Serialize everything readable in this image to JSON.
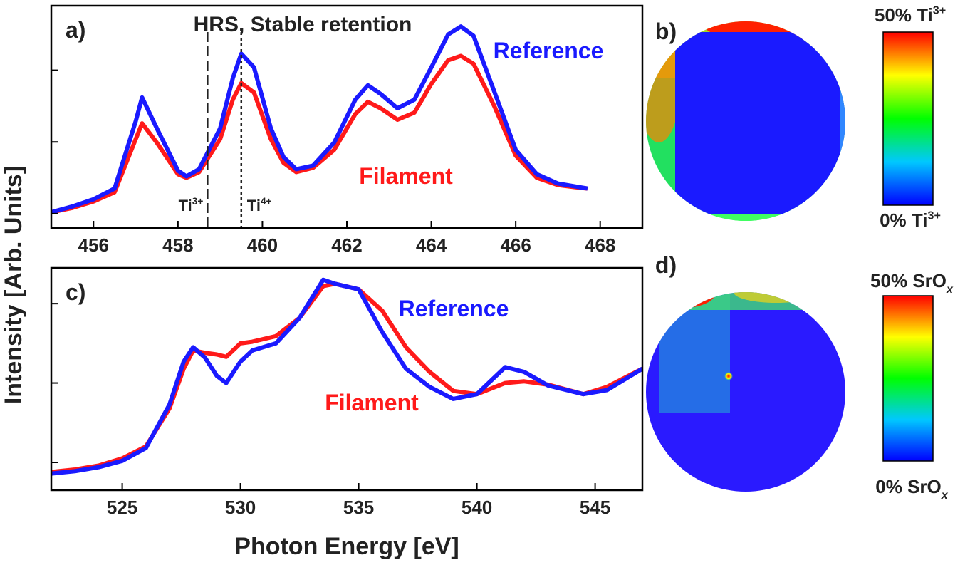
{
  "ylabel": "Intensity [Arb. Units]",
  "chart_data": [
    {
      "type": "line",
      "panel": "a)",
      "title": "HRS, Stable retention",
      "x": [
        455.0,
        455.5,
        456.0,
        456.5,
        457.0,
        457.15,
        457.5,
        458.0,
        458.2,
        458.5,
        459.0,
        459.3,
        459.5,
        459.8,
        460.2,
        460.5,
        460.8,
        461.2,
        461.7,
        462.2,
        462.5,
        462.8,
        463.2,
        463.6,
        464.0,
        464.4,
        464.7,
        465.0,
        465.5,
        466.0,
        466.5,
        467.0,
        467.4,
        467.7
      ],
      "series": [
        {
          "name": "Reference",
          "color": "#1a1aff",
          "values": [
            0.02,
            0.1,
            0.2,
            0.35,
            1.29,
            1.62,
            1.19,
            0.6,
            0.52,
            0.62,
            1.19,
            1.89,
            2.23,
            2.04,
            1.19,
            0.79,
            0.62,
            0.67,
            0.99,
            1.59,
            1.79,
            1.67,
            1.47,
            1.59,
            2.04,
            2.5,
            2.61,
            2.48,
            1.69,
            0.89,
            0.55,
            0.42,
            0.38,
            0.35
          ]
        },
        {
          "name": "Filament",
          "color": "#ff1a1a",
          "values": [
            0.02,
            0.08,
            0.17,
            0.3,
            1.04,
            1.26,
            0.99,
            0.55,
            0.5,
            0.58,
            1.04,
            1.59,
            1.82,
            1.69,
            1.04,
            0.71,
            0.58,
            0.64,
            0.89,
            1.39,
            1.56,
            1.47,
            1.31,
            1.41,
            1.81,
            2.14,
            2.2,
            2.09,
            1.49,
            0.81,
            0.5,
            0.4,
            0.37,
            0.35
          ]
        }
      ],
      "vlines": [
        {
          "x": 458.7,
          "style": "dashed",
          "label": {
            "text": "Ti",
            "sup": "3+"
          }
        },
        {
          "x": 459.5,
          "style": "dotted",
          "label": {
            "text": "Ti",
            "sup": "4+"
          }
        }
      ],
      "xlim": [
        455,
        469
      ],
      "xticks": [
        456,
        458,
        460,
        462,
        464,
        466,
        468
      ],
      "ylim": [
        -0.2,
        2.9
      ],
      "yticks": [
        0,
        1,
        2
      ]
    },
    {
      "type": "line",
      "panel": "c)",
      "xlabel": "Photon Energy [eV]",
      "x": [
        522,
        523,
        524,
        525,
        526,
        527,
        527.6,
        528.0,
        528.5,
        529,
        529.4,
        530,
        530.5,
        531.5,
        532.5,
        533.5,
        534.0,
        535.0,
        536,
        537,
        538,
        539,
        540,
        541.2,
        542,
        543,
        544.5,
        545.5,
        547
      ],
      "series": [
        {
          "name": "Reference",
          "color": "#1a1aff",
          "values": [
            -0.14,
            -0.11,
            -0.06,
            0.02,
            0.18,
            0.73,
            1.27,
            1.45,
            1.32,
            1.09,
            1.0,
            1.27,
            1.41,
            1.5,
            1.82,
            2.3,
            2.25,
            2.18,
            1.64,
            1.18,
            0.95,
            0.8,
            0.86,
            1.2,
            1.14,
            0.97,
            0.86,
            0.91,
            1.18
          ]
        },
        {
          "name": "Filament",
          "color": "#ff1a1a",
          "values": [
            -0.12,
            -0.09,
            -0.04,
            0.05,
            0.2,
            0.68,
            1.18,
            1.41,
            1.38,
            1.36,
            1.33,
            1.5,
            1.52,
            1.59,
            1.82,
            2.22,
            2.25,
            2.18,
            1.91,
            1.45,
            1.14,
            0.9,
            0.86,
            1.0,
            1.02,
            0.98,
            0.86,
            0.95,
            1.18
          ]
        }
      ],
      "xlim": [
        522,
        547
      ],
      "xticks": [
        525,
        530,
        535,
        540,
        545
      ],
      "ylim": [
        -0.35,
        2.45
      ],
      "yticks": [
        0,
        1,
        2
      ]
    }
  ],
  "maps": [
    {
      "panel": "b)",
      "max_label": {
        "text": "50% Ti",
        "sup": "3+"
      },
      "min_label": {
        "text": "0% Ti",
        "sup": "3+"
      }
    },
    {
      "panel": "d)",
      "max_label": {
        "text": "50% SrO",
        "sub": "x"
      },
      "min_label": {
        "text": "0% SrO",
        "sub": "x"
      }
    }
  ]
}
